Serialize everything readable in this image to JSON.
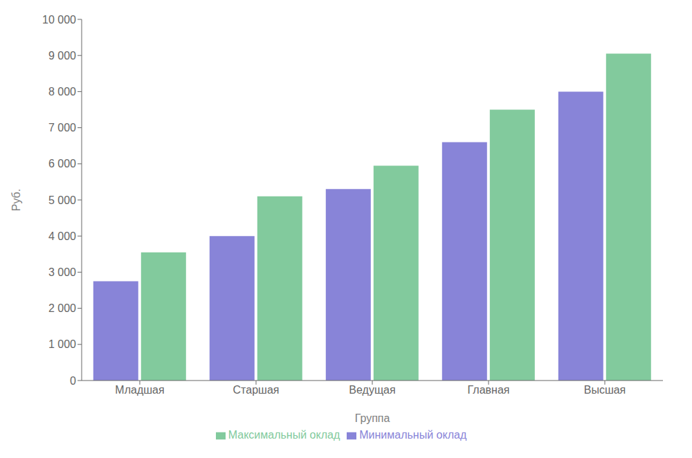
{
  "chart_data": {
    "type": "bar",
    "categories": [
      "Младшая",
      "Старшая",
      "Ведущая",
      "Главная",
      "Высшая"
    ],
    "series": [
      {
        "name": "Минимальный оклад",
        "values": [
          2750,
          4000,
          5300,
          6600,
          8000
        ]
      },
      {
        "name": "Максимальный оклад",
        "values": [
          3550,
          5100,
          5950,
          7500,
          9050
        ]
      }
    ],
    "xlabel": "Группа",
    "ylabel": "Руб.",
    "ylim": [
      0,
      10000
    ],
    "yticks": [
      0,
      {
        "value": 1000,
        "label": "1 000"
      },
      {
        "value": 2000,
        "label": "2 000"
      },
      {
        "value": 3000,
        "label": "3 000"
      },
      {
        "value": 4000,
        "label": "4 000"
      },
      {
        "value": 5000,
        "label": "5 000"
      },
      {
        "value": 6000,
        "label": "6 000"
      },
      {
        "value": 7000,
        "label": "7 000"
      },
      {
        "value": 8000,
        "label": "8 000"
      },
      {
        "value": 9000,
        "label": "9 000"
      },
      {
        "value": 10000,
        "label": "10 000"
      }
    ],
    "grid": false,
    "legend": "bottom"
  }
}
